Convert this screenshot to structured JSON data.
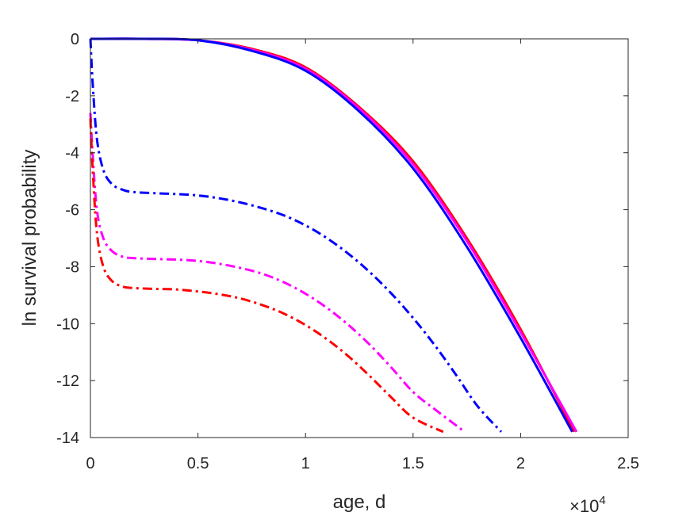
{
  "chart_data": {
    "type": "line",
    "xlabel": "age, d",
    "ylabel": "ln survival probability",
    "xlim": [
      0,
      25000
    ],
    "ylim": [
      -14,
      0
    ],
    "x_ticks": [
      0,
      5000,
      10000,
      15000,
      20000,
      25000
    ],
    "x_tick_labels": [
      "0",
      "0.5",
      "1",
      "1.5",
      "2",
      "2.5"
    ],
    "x_exponent_label": "×10",
    "x_exponent_power": "4",
    "y_ticks": [
      0,
      -2,
      -4,
      -6,
      -8,
      -10,
      -12,
      -14
    ],
    "y_tick_labels": [
      "0",
      "-2",
      "-4",
      "-6",
      "-8",
      "-10",
      "-12",
      "-14"
    ],
    "grid": false,
    "box": true,
    "series": [
      {
        "color": "#ff0000",
        "style": "solid",
        "x": [
          0,
          2500,
          5000,
          7500,
          10000,
          12500,
          15000,
          17500,
          20000,
          22500
        ],
        "y": [
          0,
          0,
          -0.05,
          -0.35,
          -1.0,
          -2.4,
          -4.3,
          -7.0,
          -10.2,
          -13.8
        ]
      },
      {
        "color": "#ff00ff",
        "style": "solid",
        "x": [
          0,
          2500,
          5000,
          7500,
          10000,
          12500,
          15000,
          17500,
          20000,
          22600
        ],
        "y": [
          0,
          0,
          -0.05,
          -0.38,
          -1.05,
          -2.45,
          -4.4,
          -7.1,
          -10.3,
          -13.8
        ]
      },
      {
        "color": "#0000ff",
        "style": "solid",
        "x": [
          0,
          2500,
          5000,
          7500,
          10000,
          12500,
          15000,
          17500,
          20000,
          22400
        ],
        "y": [
          0,
          0,
          -0.05,
          -0.42,
          -1.12,
          -2.55,
          -4.55,
          -7.3,
          -10.5,
          -13.8
        ]
      },
      {
        "color": "#0000ff",
        "style": "dashdot",
        "x": [
          0,
          100,
          300,
          600,
          1000,
          1500,
          2000,
          3000,
          4000,
          5000,
          6000,
          7000,
          8000,
          9000,
          10000,
          11000,
          12000,
          13000,
          14000,
          15000,
          16000,
          17000,
          18000,
          19100
        ],
        "y": [
          0,
          -1.5,
          -3.5,
          -4.6,
          -5.1,
          -5.3,
          -5.38,
          -5.42,
          -5.45,
          -5.5,
          -5.6,
          -5.75,
          -5.95,
          -6.2,
          -6.55,
          -7.0,
          -7.55,
          -8.2,
          -8.95,
          -9.8,
          -10.75,
          -11.8,
          -12.9,
          -13.8
        ]
      },
      {
        "color": "#ff00ff",
        "style": "dashdot",
        "x": [
          0,
          100,
          300,
          600,
          1000,
          1500,
          2000,
          3000,
          4000,
          5000,
          6000,
          7000,
          8000,
          9000,
          10000,
          11000,
          12000,
          13000,
          14000,
          15000,
          16000,
          17400
        ],
        "y": [
          -2.6,
          -4.0,
          -6.0,
          -7.0,
          -7.45,
          -7.65,
          -7.7,
          -7.73,
          -7.75,
          -7.8,
          -7.9,
          -8.05,
          -8.25,
          -8.55,
          -8.95,
          -9.45,
          -10.05,
          -10.75,
          -11.55,
          -12.4,
          -13.0,
          -13.8
        ]
      },
      {
        "color": "#ff0000",
        "style": "dashdot",
        "x": [
          0,
          100,
          300,
          600,
          1000,
          1500,
          2000,
          3000,
          4000,
          5000,
          6000,
          7000,
          8000,
          9000,
          10000,
          11000,
          12000,
          13000,
          14000,
          15000,
          16400
        ],
        "y": [
          -2.8,
          -4.5,
          -6.8,
          -8.0,
          -8.5,
          -8.7,
          -8.75,
          -8.78,
          -8.8,
          -8.87,
          -8.97,
          -9.12,
          -9.35,
          -9.65,
          -10.05,
          -10.55,
          -11.15,
          -11.85,
          -12.6,
          -13.3,
          -13.8
        ]
      }
    ]
  }
}
